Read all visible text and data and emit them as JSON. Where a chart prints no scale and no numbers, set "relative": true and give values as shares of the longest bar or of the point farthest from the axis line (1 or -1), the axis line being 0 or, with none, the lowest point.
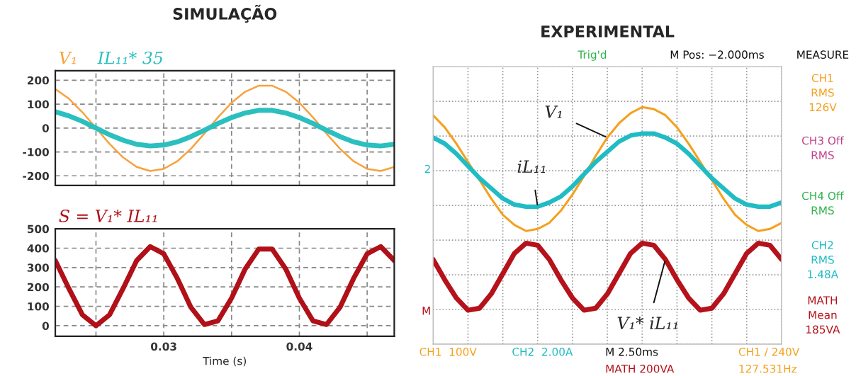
{
  "chart_data": [
    {
      "type": "line",
      "title": "SIMULAÇÃO",
      "x": [
        0.022,
        0.023,
        0.024,
        0.025,
        0.026,
        0.027,
        0.028,
        0.029,
        0.03,
        0.031,
        0.032,
        0.033,
        0.034,
        0.035,
        0.036,
        0.037,
        0.038,
        0.039,
        0.04,
        0.041,
        0.042,
        0.043,
        0.044,
        0.045,
        0.046,
        0.047
      ],
      "series": [
        {
          "name": "V₁",
          "color": "#f7a23c",
          "values": [
            163,
            123,
            66,
            0,
            -66,
            -123,
            -163,
            -180,
            -171,
            -139,
            -87,
            -23,
            45,
            106,
            152,
            177,
            177,
            152,
            106,
            45,
            -23,
            -87,
            -139,
            -171,
            -180,
            -163
          ]
        },
        {
          "name": "IL₁₁* 35",
          "color": "#2bbfbf",
          "values": [
            68,
            51,
            28,
            0,
            -28,
            -51,
            -68,
            -75,
            -71,
            -58,
            -36,
            -9,
            19,
            44,
            63,
            74,
            74,
            63,
            44,
            19,
            -9,
            -36,
            -58,
            -71,
            -75,
            -68
          ]
        }
      ],
      "xlim": [
        0.022,
        0.047
      ],
      "xticks": [
        {
          "value": 0.025,
          "label": null
        },
        {
          "value": 0.03,
          "label": null
        },
        {
          "value": 0.035,
          "label": null
        },
        {
          "value": 0.04,
          "label": null
        },
        {
          "value": 0.045,
          "label": null
        }
      ],
      "ylim": [
        -240,
        240
      ],
      "yticks": [
        -200,
        -100,
        0,
        100,
        200
      ],
      "tick_labels": "y",
      "grid": true,
      "legend": "top left",
      "line_style": "solid",
      "marker": "none"
    },
    {
      "type": "line",
      "xlabel": "Time (s)",
      "x": [
        0.022,
        0.023,
        0.024,
        0.025,
        0.026,
        0.027,
        0.028,
        0.029,
        0.03,
        0.031,
        0.032,
        0.033,
        0.034,
        0.035,
        0.036,
        0.037,
        0.038,
        0.039,
        0.04,
        0.041,
        0.042,
        0.043,
        0.044,
        0.045,
        0.046,
        0.047
      ],
      "series": [
        {
          "name": "S = V₁* IL₁₁",
          "color": "#b01018",
          "values": [
            336,
            192,
            56,
            0,
            56,
            192,
            336,
            408,
            371,
            244,
            95,
            6,
            25,
            142,
            292,
            395,
            395,
            292,
            142,
            25,
            6,
            95,
            244,
            371,
            408,
            336
          ]
        }
      ],
      "xlim": [
        0.022,
        0.047
      ],
      "xticks": [
        {
          "value": 0.025,
          "label": null
        },
        0.03,
        {
          "value": 0.035,
          "label": null
        },
        0.04,
        {
          "value": 0.045,
          "label": null
        }
      ],
      "ylim": [
        -55,
        500
      ],
      "yticks": [
        0,
        100,
        200,
        300,
        400,
        500
      ],
      "grid": true,
      "legend": "top left",
      "line_style": "solid",
      "marker": "none"
    },
    {
      "type": "line",
      "title": "EXPERIMENTAL",
      "relative": true,
      "grid": true,
      "line_style": "solid",
      "marker": "none",
      "categories": [
        null,
        null,
        null,
        null,
        null,
        null,
        null,
        null,
        null,
        null,
        null,
        null,
        null,
        null,
        null,
        null,
        null,
        null,
        null,
        null,
        null,
        null,
        null,
        null,
        null,
        null,
        null,
        null,
        null,
        null,
        null
      ],
      "series": [
        {
          "color": "#f5a01e",
          "values": [
            0.96,
            0.9,
            0.82,
            0.73,
            0.64,
            0.55,
            0.47,
            0.42,
            0.39,
            0.4,
            0.43,
            0.49,
            0.57,
            0.66,
            0.76,
            0.85,
            0.92,
            0.97,
            1.0,
            0.99,
            0.96,
            0.9,
            0.82,
            0.73,
            0.64,
            0.55,
            0.47,
            0.42,
            0.39,
            0.4,
            0.43
          ]
        },
        {
          "color": "#20bcc4",
          "values": [
            0.85,
            0.82,
            0.77,
            0.71,
            0.65,
            0.6,
            0.55,
            0.52,
            0.51,
            0.51,
            0.53,
            0.56,
            0.61,
            0.67,
            0.73,
            0.78,
            0.83,
            0.86,
            0.87,
            0.87,
            0.85,
            0.82,
            0.77,
            0.71,
            0.65,
            0.6,
            0.55,
            0.52,
            0.51,
            0.51,
            0.53
          ]
        },
        {
          "color": "#b5121b",
          "values": [
            0.25,
            0.15,
            0.06,
            0.0,
            0.01,
            0.08,
            0.18,
            0.28,
            0.33,
            0.32,
            0.25,
            0.15,
            0.06,
            0.0,
            0.01,
            0.08,
            0.18,
            0.28,
            0.33,
            0.32,
            0.25,
            0.15,
            0.06,
            0.0,
            0.01,
            0.08,
            0.18,
            0.28,
            0.33,
            0.32,
            0.25
          ]
        }
      ],
      "annotations": [
        "Trig'd",
        "M Pos: −2.000ms",
        "MEASURE",
        "CH1\nRMS\n126V",
        "CH3 Off\nRMS",
        "CH4 Off\nRMS",
        "CH2\nRMS\n1.48A",
        "MATH\nMean\n185VA",
        "CH1  100V",
        "CH2  2.00A",
        "M 2.50ms",
        "MATH 200VA",
        "CH1 / 240V",
        "127.531Hz",
        "2",
        "M",
        "V₁",
        "iL₁₁",
        "V₁* iL₁₁"
      ]
    }
  ]
}
